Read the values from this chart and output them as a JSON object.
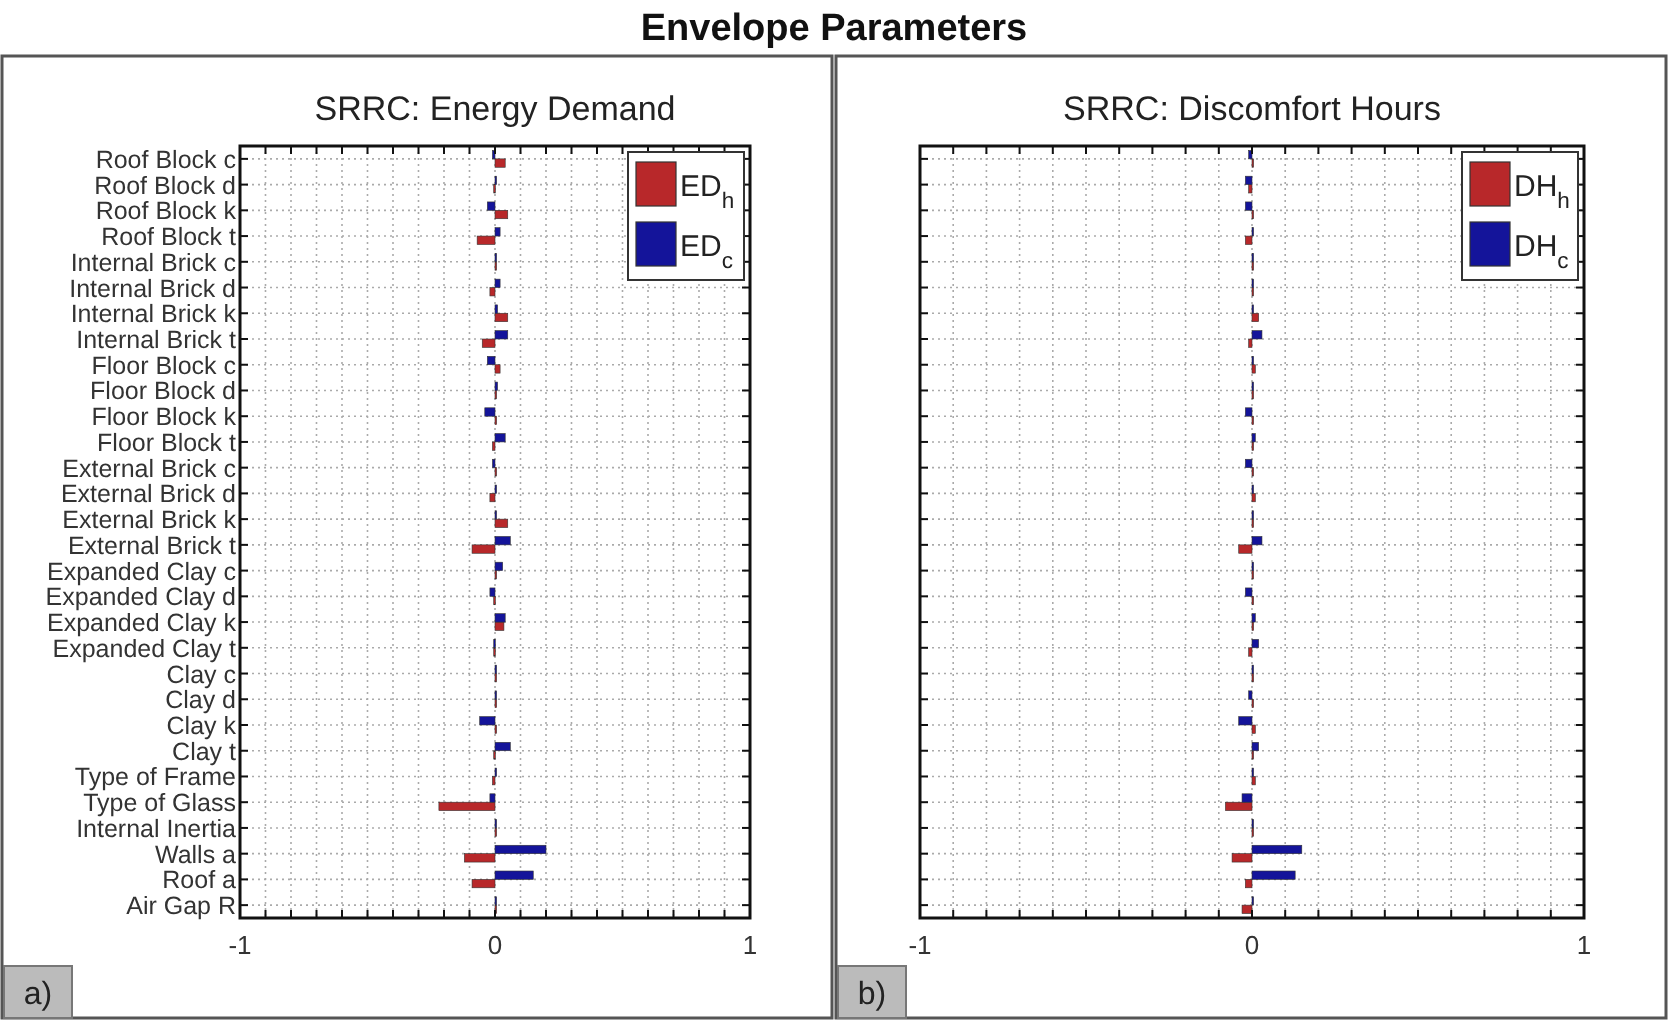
{
  "chart_data": [
    {
      "type": "bar",
      "orientation": "horizontal",
      "title": "Envelope Parameters",
      "subtitle": "SRRC: Energy Demand",
      "annotations": [
        "a)"
      ],
      "categories": [
        "Roof Block c",
        "Roof Block d",
        "Roof Block k",
        "Roof Block t",
        "Internal Brick c",
        "Internal Brick d",
        "Internal Brick k",
        "Internal Brick t",
        "Floor Block c",
        "Floor Block d",
        "Floor Block k",
        "Floor Block t",
        "External Brick c",
        "External Brick d",
        "External Brick k",
        "External Brick t",
        "Expanded Clay c",
        "Expanded Clay d",
        "Expanded Clay k",
        "Expanded Clay t",
        "Clay c",
        "Clay d",
        "Clay k",
        "Clay t",
        "Type of Frame",
        "Type of Glass",
        "Internal Inertia",
        "Walls a",
        "Roof a",
        "Air Gap R"
      ],
      "series": [
        {
          "name": "ED$_{h}$",
          "color": "#b8282a",
          "values": [
            0.04,
            -0.005,
            0.05,
            -0.07,
            0.005,
            -0.02,
            0.05,
            -0.05,
            0.02,
            0.005,
            0,
            -0.01,
            0,
            -0.02,
            0.05,
            -0.09,
            0,
            -0.005,
            0.035,
            -0.005,
            0.005,
            0,
            0,
            -0.005,
            -0.01,
            -0.22,
            0.005,
            -0.12,
            -0.09,
            0
          ]
        },
        {
          "name": "ED$_{c}$",
          "color": "#14149a",
          "values": [
            -0.01,
            0,
            -0.03,
            0.02,
            0,
            0.02,
            0.01,
            0.05,
            -0.03,
            0.01,
            -0.04,
            0.04,
            -0.01,
            0,
            0,
            0.06,
            0.03,
            -0.02,
            0.04,
            -0.005,
            0.005,
            0.005,
            -0.06,
            0.06,
            0,
            -0.02,
            0.005,
            0.2,
            0.15,
            0
          ]
        }
      ],
      "xlim": [
        -1,
        1
      ],
      "xticks": [
        -1,
        {
          "value": -0.9,
          "label": null
        },
        {
          "value": -0.8,
          "label": null
        },
        {
          "value": -0.7,
          "label": null
        },
        {
          "value": -0.6,
          "label": null
        },
        {
          "value": -0.5,
          "label": null
        },
        {
          "value": -0.4,
          "label": null
        },
        {
          "value": -0.3,
          "label": null
        },
        {
          "value": -0.2,
          "label": null
        },
        {
          "value": -0.1,
          "label": null
        },
        0,
        {
          "value": 0.1,
          "label": null
        },
        {
          "value": 0.2,
          "label": null
        },
        {
          "value": 0.3,
          "label": null
        },
        {
          "value": 0.4,
          "label": null
        },
        {
          "value": 0.5,
          "label": null
        },
        {
          "value": 0.6,
          "label": null
        },
        {
          "value": 0.7,
          "label": null
        },
        {
          "value": 0.8,
          "label": null
        },
        {
          "value": 0.9,
          "label": null
        },
        1
      ],
      "grid": true,
      "legend": "top right"
    },
    {
      "type": "bar",
      "orientation": "horizontal",
      "subtitle": "SRRC: Discomfort Hours",
      "annotations": [
        "b)"
      ],
      "categories": [
        null,
        null,
        null,
        null,
        null,
        null,
        null,
        null,
        null,
        null,
        null,
        null,
        null,
        null,
        null,
        null,
        null,
        null,
        null,
        null,
        null,
        null,
        null,
        null,
        null,
        null,
        null,
        null,
        null,
        null
      ],
      "series": [
        {
          "name": "DH$_{h}$",
          "color": "#b8282a",
          "values": [
            0,
            -0.01,
            0,
            -0.02,
            0,
            0,
            0.02,
            -0.01,
            0.01,
            0,
            0,
            0,
            0,
            0.01,
            0,
            -0.04,
            0,
            0,
            0,
            -0.01,
            0,
            0,
            0.01,
            0,
            0.01,
            -0.08,
            0,
            -0.06,
            -0.02,
            -0.03
          ]
        },
        {
          "name": "DH$_{c}$",
          "color": "#14149a",
          "values": [
            -0.01,
            -0.02,
            -0.02,
            0,
            0,
            0,
            0,
            0.03,
            0,
            0,
            -0.02,
            0.01,
            -0.02,
            0,
            0,
            0.03,
            0,
            -0.02,
            0.01,
            0.02,
            0,
            -0.01,
            -0.04,
            0.02,
            0,
            -0.03,
            0,
            0.15,
            0.13,
            0
          ]
        }
      ],
      "xlim": [
        -1,
        1
      ],
      "xticks": [
        -1,
        {
          "value": -0.9,
          "label": null
        },
        {
          "value": -0.8,
          "label": null
        },
        {
          "value": -0.7,
          "label": null
        },
        {
          "value": -0.6,
          "label": null
        },
        {
          "value": -0.5,
          "label": null
        },
        {
          "value": -0.4,
          "label": null
        },
        {
          "value": -0.3,
          "label": null
        },
        {
          "value": -0.2,
          "label": null
        },
        {
          "value": -0.1,
          "label": null
        },
        0,
        {
          "value": 0.1,
          "label": null
        },
        {
          "value": 0.2,
          "label": null
        },
        {
          "value": 0.3,
          "label": null
        },
        {
          "value": 0.4,
          "label": null
        },
        {
          "value": 0.5,
          "label": null
        },
        {
          "value": 0.6,
          "label": null
        },
        {
          "value": 0.7,
          "label": null
        },
        {
          "value": 0.8,
          "label": null
        },
        {
          "value": 0.9,
          "label": null
        },
        1
      ],
      "grid": true,
      "legend": "top right"
    }
  ]
}
